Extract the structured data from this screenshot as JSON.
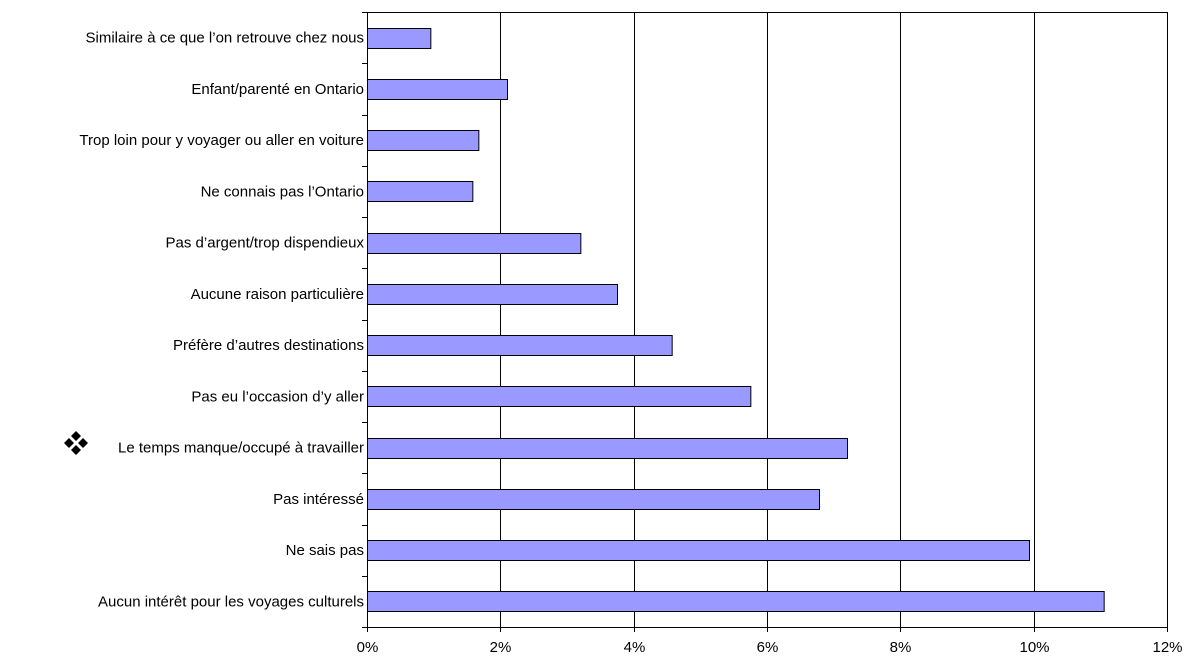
{
  "chart_data": {
    "type": "bar",
    "orientation": "horizontal",
    "categories": [
      "Similaire à ce que l’on retrouve chez nous",
      "Enfant/parenté en Ontario",
      "Trop loin pour y voyager ou aller en voiture",
      "Ne connais pas l’Ontario",
      "Pas d’argent/trop dispendieux",
      "Aucune raison particulière",
      "Préfère d’autres destinations",
      "Pas eu l’occasion d’y aller",
      "Le temps manque/occupé à travailler",
      "Pas intéressé",
      "Ne sais pas",
      "Aucun intérêt pour les voyages culturels"
    ],
    "values": [
      0.95,
      2.1,
      1.67,
      1.58,
      3.2,
      3.75,
      4.57,
      5.75,
      7.2,
      6.78,
      9.93,
      11.05
    ],
    "xlim": [
      0,
      12
    ],
    "xticks": [
      0,
      2,
      4,
      6,
      8,
      10,
      12
    ],
    "tick_format": "percent",
    "grid": "vertical",
    "bar_color": "#9999ff",
    "title": "",
    "xlabel": "",
    "ylabel": ""
  }
}
